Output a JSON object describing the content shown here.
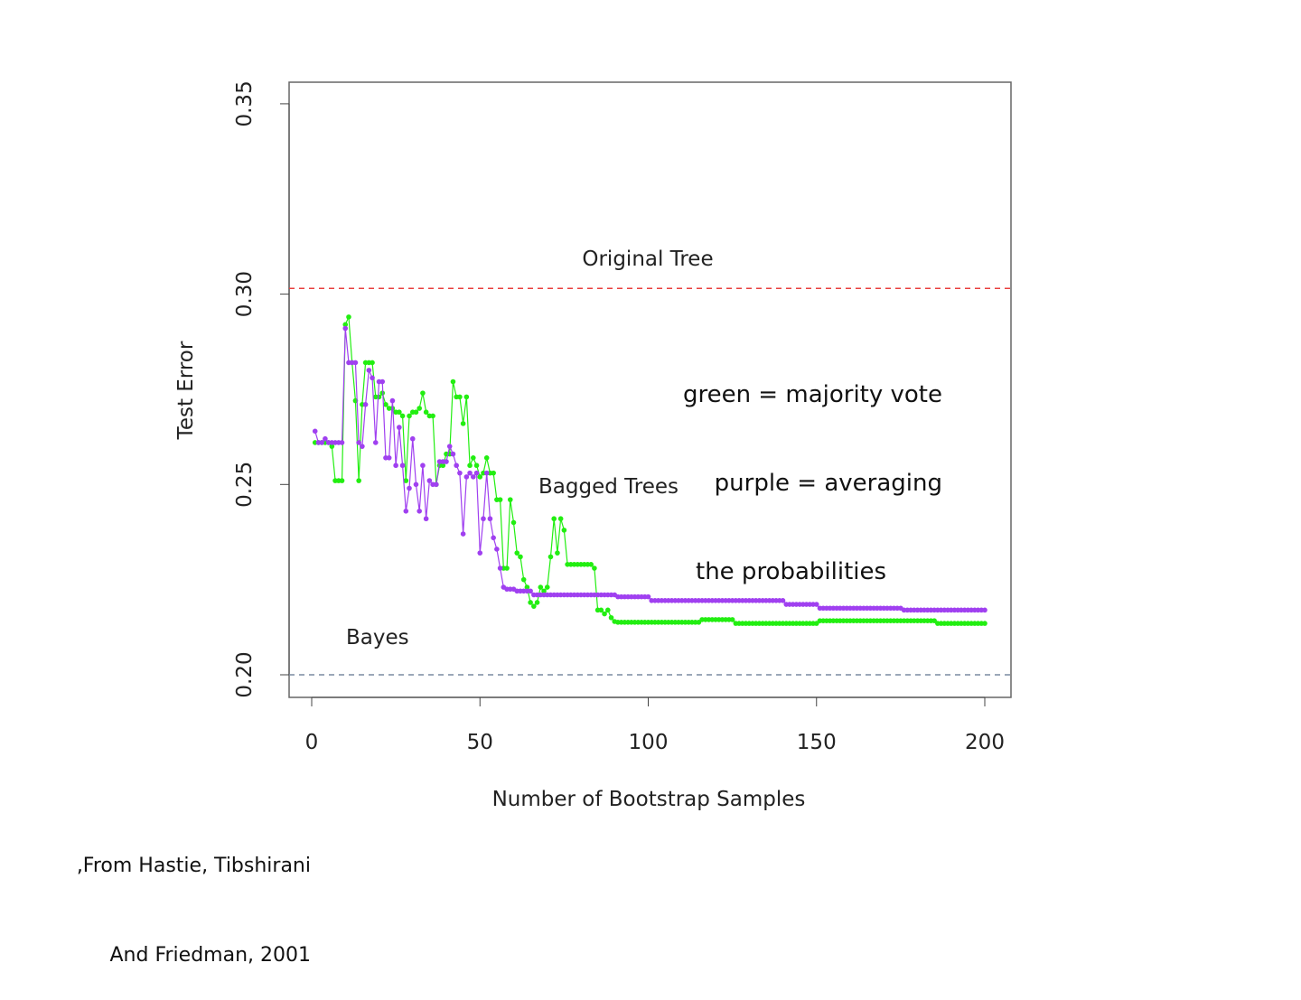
{
  "chart_data": {
    "type": "line",
    "title": "",
    "xlabel": "Number of Bootstrap Samples",
    "ylabel": "Test Error",
    "xlim": [
      0,
      200
    ],
    "ylim": [
      0.194,
      0.356
    ],
    "xticks": [
      "0",
      "50",
      "100",
      "150",
      "200"
    ],
    "xtick_values": [
      0,
      50,
      100,
      150,
      200
    ],
    "yticks": [
      "0.20",
      "0.25",
      "0.30",
      "0.35"
    ],
    "ytick_values": [
      0.2,
      0.25,
      0.3,
      0.35
    ],
    "grid": false,
    "reference_lines": [
      {
        "name": "Original Tree",
        "value": 0.3015,
        "color": "#e8403f",
        "label": "Original Tree"
      },
      {
        "name": "Bayes",
        "value": 0.2,
        "color": "#7a8aa0",
        "label": "Bayes"
      }
    ],
    "series_label": "Bagged Trees",
    "series": [
      {
        "name": "majority vote",
        "color": "#22ee11",
        "values": [
          0.261,
          0.261,
          0.261,
          0.261,
          0.261,
          0.26,
          0.251,
          0.251,
          0.251,
          0.292,
          0.294,
          0.282,
          0.272,
          0.251,
          0.271,
          0.282,
          0.282,
          0.282,
          0.273,
          0.273,
          0.274,
          0.271,
          0.27,
          0.27,
          0.269,
          0.269,
          0.268,
          0.251,
          0.268,
          0.269,
          0.269,
          0.27,
          0.274,
          0.269,
          0.268,
          0.268,
          0.25,
          0.255,
          0.255,
          0.258,
          0.258,
          0.277,
          0.273,
          0.273,
          0.266,
          0.273,
          0.255,
          0.257,
          0.255,
          0.252,
          0.253,
          0.257,
          0.253,
          0.253,
          0.246,
          0.246,
          0.228,
          0.228,
          0.246,
          0.24,
          0.232,
          0.231,
          0.225,
          0.223,
          0.219,
          0.218,
          0.219,
          0.223,
          0.222,
          0.223,
          0.231,
          0.241,
          0.232,
          0.241,
          0.238,
          0.229,
          0.229,
          0.229,
          0.229,
          0.229,
          0.229,
          0.229,
          0.229,
          0.228,
          0.217,
          0.217,
          0.216,
          0.217,
          0.215,
          0.214,
          0.2138,
          0.2138,
          0.2138,
          0.2138,
          0.2138,
          0.2138,
          0.2138,
          0.2138,
          0.2138,
          0.2138,
          0.2138,
          0.2138,
          0.2138,
          0.2138,
          0.2138,
          0.2138,
          0.2138,
          0.2138,
          0.2138,
          0.2138,
          0.2138,
          0.2138,
          0.2138,
          0.2138,
          0.2138,
          0.2145,
          0.2145,
          0.2145,
          0.2145,
          0.2145,
          0.2145,
          0.2145,
          0.2145,
          0.2145,
          0.2145,
          0.2135,
          0.2135,
          0.2135,
          0.2135,
          0.2135,
          0.2135,
          0.2135,
          0.2135,
          0.2135,
          0.2135,
          0.2135,
          0.2135,
          0.2135,
          0.2135,
          0.2135,
          0.2135,
          0.2135,
          0.2135,
          0.2135,
          0.2135,
          0.2135,
          0.2135,
          0.2135,
          0.2135,
          0.2135,
          0.2142,
          0.2142,
          0.2142,
          0.2142,
          0.2142,
          0.2142,
          0.2142,
          0.2142,
          0.2142,
          0.2142,
          0.2142,
          0.2142,
          0.2142,
          0.2142,
          0.2142,
          0.2142,
          0.2142,
          0.2142,
          0.2142,
          0.2142,
          0.2142,
          0.2142,
          0.2142,
          0.2142,
          0.2142,
          0.2142,
          0.2142,
          0.2142,
          0.2142,
          0.2142,
          0.2142,
          0.2142,
          0.2142,
          0.2142,
          0.2142,
          0.2135,
          0.2135,
          0.2135,
          0.2135,
          0.2135,
          0.2135,
          0.2135,
          0.2135,
          0.2135,
          0.2135,
          0.2135,
          0.2135,
          0.2135,
          0.2135,
          0.2135
        ]
      },
      {
        "name": "averaging the probabilities",
        "color": "#a040f0",
        "values": [
          0.264,
          0.261,
          0.261,
          0.262,
          0.261,
          0.261,
          0.261,
          0.261,
          0.261,
          0.291,
          0.282,
          0.282,
          0.282,
          0.261,
          0.26,
          0.271,
          0.28,
          0.278,
          0.261,
          0.277,
          0.277,
          0.257,
          0.257,
          0.272,
          0.255,
          0.265,
          0.255,
          0.243,
          0.249,
          0.262,
          0.25,
          0.243,
          0.255,
          0.241,
          0.251,
          0.25,
          0.25,
          0.256,
          0.256,
          0.256,
          0.26,
          0.258,
          0.255,
          0.253,
          0.237,
          0.252,
          0.253,
          0.252,
          0.253,
          0.232,
          0.241,
          0.253,
          0.241,
          0.236,
          0.233,
          0.228,
          0.223,
          0.2225,
          0.2225,
          0.2225,
          0.222,
          0.222,
          0.222,
          0.222,
          0.222,
          0.221,
          0.221,
          0.221,
          0.221,
          0.221,
          0.221,
          0.221,
          0.221,
          0.221,
          0.221,
          0.221,
          0.221,
          0.221,
          0.221,
          0.221,
          0.221,
          0.221,
          0.221,
          0.221,
          0.221,
          0.221,
          0.221,
          0.221,
          0.221,
          0.221,
          0.2205,
          0.2205,
          0.2205,
          0.2205,
          0.2205,
          0.2205,
          0.2205,
          0.2205,
          0.2205,
          0.2205,
          0.2195,
          0.2195,
          0.2195,
          0.2195,
          0.2195,
          0.2195,
          0.2195,
          0.2195,
          0.2195,
          0.2195,
          0.2195,
          0.2195,
          0.2195,
          0.2195,
          0.2195,
          0.2195,
          0.2195,
          0.2195,
          0.2195,
          0.2195,
          0.2195,
          0.2195,
          0.2195,
          0.2195,
          0.2195,
          0.2195,
          0.2195,
          0.2195,
          0.2195,
          0.2195,
          0.2195,
          0.2195,
          0.2195,
          0.2195,
          0.2195,
          0.2195,
          0.2195,
          0.2195,
          0.2195,
          0.2195,
          0.2185,
          0.2185,
          0.2185,
          0.2185,
          0.2185,
          0.2185,
          0.2185,
          0.2185,
          0.2185,
          0.2185,
          0.2175,
          0.2175,
          0.2175,
          0.2175,
          0.2175,
          0.2175,
          0.2175,
          0.2175,
          0.2175,
          0.2175,
          0.2175,
          0.2175,
          0.2175,
          0.2175,
          0.2175,
          0.2175,
          0.2175,
          0.2175,
          0.2175,
          0.2175,
          0.2175,
          0.2175,
          0.2175,
          0.2175,
          0.2175,
          0.217,
          0.217,
          0.217,
          0.217,
          0.217,
          0.217,
          0.217,
          0.217,
          0.217,
          0.217,
          0.217,
          0.217,
          0.217,
          0.217,
          0.217,
          0.217,
          0.217,
          0.217,
          0.217,
          0.217,
          0.217,
          0.217,
          0.217,
          0.217,
          0.217
        ]
      }
    ],
    "x_start": 1
  },
  "annotations": {
    "legend_line1": "green = majority vote",
    "legend_line2": "purple = averaging",
    "legend_line3": "the probabilities",
    "citation_line1": ",From Hastie, Tibshirani",
    "citation_line2": "And Friedman, 2001"
  }
}
